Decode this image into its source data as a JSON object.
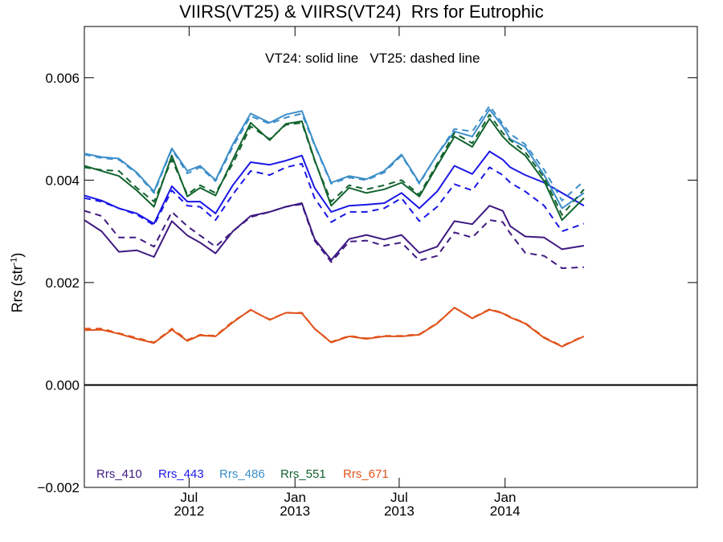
{
  "chart_data": {
    "type": "line",
    "title": "VIIRS(VT25) & VIIRS(VT24)  Rrs for Eutrophic",
    "annotation": "VT24: solid line   VT25: dashed line",
    "ylabel": "Rrs (str",
    "ylabel_exp": "-1",
    "ylabel_close": ")",
    "ylim": [
      -0.002,
      0.007
    ],
    "yticks": [
      -0.002,
      0.0,
      0.002,
      0.004,
      0.006
    ],
    "ytick_labels": [
      "−0.002",
      "0.000",
      "0.002",
      "0.004",
      "0.006"
    ],
    "xlim": [
      "2012-01-01",
      "2014-12-01"
    ],
    "xticks": [
      {
        "date": "2012-07-01",
        "month": "Jul",
        "year": "2012"
      },
      {
        "date": "2013-01-01",
        "month": "Jan",
        "year": "2013"
      },
      {
        "date": "2013-07-01",
        "month": "Jul",
        "year": "2013"
      },
      {
        "date": "2014-01-01",
        "month": "Jan",
        "year": "2014"
      }
    ],
    "zero_line": 0.0,
    "x": [
      "2012-01-01",
      "2012-01-31",
      "2012-03-01",
      "2012-04-01",
      "2012-05-01",
      "2012-06-01",
      "2012-06-28",
      "2012-07-20",
      "2012-08-16",
      "2012-09-15",
      "2012-10-16",
      "2012-11-18",
      "2012-12-16",
      "2013-01-13",
      "2013-02-04",
      "2013-03-05",
      "2013-04-05",
      "2013-05-05",
      "2013-06-05",
      "2013-07-05",
      "2013-08-05",
      "2013-09-05",
      "2013-10-05",
      "2013-11-05",
      "2013-12-05",
      "2013-12-28",
      "2014-01-10",
      "2014-02-05",
      "2014-03-10",
      "2014-04-10",
      "2014-05-18",
      "2014-06-12",
      "2014-07-15",
      "2014-08-15",
      "2014-09-15",
      "2014-10-15",
      "2014-11-15",
      "2014-12-01"
    ],
    "series": [
      {
        "name": "Rrs_410",
        "band": "410",
        "color": "#3f1a82",
        "style": "solid",
        "values": [
          0.00322,
          0.003,
          0.0026,
          0.00263,
          0.0025,
          0.0032,
          0.00292,
          0.00278,
          0.00257,
          0.003,
          0.0033,
          0.00338,
          0.00348,
          0.00355,
          0.00285,
          0.00244,
          0.00285,
          0.00293,
          0.00284,
          0.00293,
          0.00258,
          0.0027,
          0.0032,
          0.00314,
          0.0035,
          0.0034,
          0.0031,
          0.0029,
          0.00288,
          0.00265,
          0.00272,
          null,
          null,
          null,
          null,
          null,
          null,
          null
        ]
      },
      {
        "name": "Rrs_410",
        "band": "410",
        "color": "#3f1a82",
        "style": "dashed",
        "values": [
          0.0034,
          0.0033,
          0.00288,
          0.00288,
          0.0027,
          0.00338,
          0.0031,
          0.00292,
          0.0027,
          0.003,
          0.00328,
          0.00338,
          0.00348,
          0.00353,
          0.00282,
          0.0024,
          0.0028,
          0.00282,
          0.00272,
          0.00278,
          0.00243,
          0.00252,
          0.00298,
          0.00288,
          0.00322,
          0.00318,
          0.00296,
          0.00258,
          0.00252,
          0.00228,
          0.0023,
          null,
          null,
          null,
          null,
          null,
          null,
          null
        ]
      },
      {
        "name": "Rrs_443",
        "band": "443",
        "color": "#1a17e6",
        "style": "solid",
        "values": [
          0.0037,
          0.0036,
          0.00345,
          0.00335,
          0.00315,
          0.00388,
          0.00358,
          0.00358,
          0.00335,
          0.0039,
          0.00435,
          0.0043,
          0.00438,
          0.00448,
          0.00385,
          0.00338,
          0.0035,
          0.00352,
          0.00355,
          0.00375,
          0.00345,
          0.00378,
          0.00428,
          0.00412,
          0.00456,
          0.0044,
          0.00425,
          0.0041,
          0.00395,
          0.00375,
          0.0035,
          null,
          null,
          null,
          null,
          null,
          null,
          null
        ]
      },
      {
        "name": "Rrs_443",
        "band": "443",
        "color": "#1a17e6",
        "style": "dashed",
        "values": [
          0.00365,
          0.00358,
          0.00345,
          0.00333,
          0.00312,
          0.0038,
          0.0035,
          0.00348,
          0.00322,
          0.00372,
          0.00418,
          0.0041,
          0.00425,
          0.00432,
          0.00365,
          0.00318,
          0.00338,
          0.00338,
          0.00345,
          0.00365,
          0.0032,
          0.00348,
          0.00392,
          0.0038,
          0.00425,
          0.0041,
          0.00395,
          0.00378,
          0.0035,
          0.003,
          0.00315,
          null,
          null,
          null,
          null,
          null,
          null,
          null
        ]
      },
      {
        "name": "Rrs_486",
        "band": "486",
        "color": "#3b8ec9",
        "style": "solid",
        "values": [
          0.00452,
          0.00445,
          0.00442,
          0.00415,
          0.00378,
          0.00462,
          0.00418,
          0.00428,
          0.004,
          0.0047,
          0.0053,
          0.00512,
          0.00528,
          0.00535,
          0.0047,
          0.00395,
          0.00408,
          0.00402,
          0.00418,
          0.0045,
          0.00395,
          0.0045,
          0.00495,
          0.00485,
          0.00538,
          0.00505,
          0.0048,
          0.00465,
          0.0041,
          0.00345,
          0.00375,
          null,
          null,
          null,
          null,
          null,
          null,
          null
        ]
      },
      {
        "name": "Rrs_486",
        "band": "486",
        "color": "#3b8ec9",
        "style": "dashed",
        "values": [
          0.0045,
          0.00443,
          0.0044,
          0.00413,
          0.00375,
          0.0046,
          0.00413,
          0.00425,
          0.00398,
          0.00465,
          0.00525,
          0.0051,
          0.00522,
          0.0053,
          0.00468,
          0.00393,
          0.00405,
          0.004,
          0.00415,
          0.00448,
          0.00393,
          0.0045,
          0.005,
          0.00495,
          0.00545,
          0.0051,
          0.0049,
          0.0047,
          0.0042,
          0.0036,
          0.00398,
          null,
          null,
          null,
          null,
          null,
          null,
          null
        ]
      },
      {
        "name": "Rrs_551",
        "band": "551",
        "color": "#12632e",
        "style": "solid",
        "values": [
          0.00428,
          0.00418,
          0.00408,
          0.0038,
          0.00348,
          0.00448,
          0.00368,
          0.00385,
          0.0037,
          0.0044,
          0.00512,
          0.00478,
          0.0051,
          0.00515,
          0.0044,
          0.0035,
          0.00385,
          0.00375,
          0.00382,
          0.00395,
          0.00368,
          0.00428,
          0.00485,
          0.00465,
          0.0052,
          0.00485,
          0.0047,
          0.00448,
          0.00398,
          0.00322,
          0.00365,
          null,
          null,
          null,
          null,
          null,
          null,
          null
        ]
      },
      {
        "name": "Rrs_551",
        "band": "551",
        "color": "#12632e",
        "style": "dashed",
        "values": [
          0.00425,
          0.0042,
          0.00418,
          0.00385,
          0.00358,
          0.0044,
          0.00372,
          0.0039,
          0.00375,
          0.00432,
          0.00505,
          0.0048,
          0.00508,
          0.00512,
          0.00438,
          0.00358,
          0.0039,
          0.00382,
          0.0039,
          0.004,
          0.00372,
          0.00432,
          0.00492,
          0.00472,
          0.00528,
          0.00492,
          0.00478,
          0.00455,
          0.00405,
          0.00332,
          0.00382,
          null,
          null,
          null,
          null,
          null,
          null,
          null
        ]
      },
      {
        "name": "Rrs_671",
        "band": "671",
        "color": "#e0521a",
        "style": "solid",
        "values": [
          0.00107,
          0.00108,
          0.001,
          0.0009,
          0.00082,
          0.00108,
          0.00086,
          0.00097,
          0.00095,
          0.00122,
          0.00147,
          0.00127,
          0.00141,
          0.0014,
          0.0011,
          0.00083,
          0.00095,
          0.0009,
          0.00095,
          0.00095,
          0.00098,
          0.0012,
          0.00151,
          0.0013,
          0.00147,
          0.0014,
          0.00132,
          0.0012,
          0.00092,
          0.00075,
          0.00095,
          null,
          null,
          null,
          null,
          null,
          null,
          null
        ]
      },
      {
        "name": "Rrs_671",
        "band": "671",
        "color": "#e0521a",
        "style": "dashed",
        "values": [
          0.0011,
          0.0011,
          0.00101,
          0.00092,
          0.00083,
          0.0011,
          0.00088,
          0.00098,
          0.00096,
          0.00124,
          0.00146,
          0.00128,
          0.00141,
          0.00141,
          0.0011,
          0.00084,
          0.00096,
          0.00091,
          0.00096,
          0.00096,
          0.00099,
          0.00121,
          0.00151,
          0.00131,
          0.00148,
          0.00141,
          0.00133,
          0.00121,
          0.00093,
          0.00076,
          0.00096,
          null,
          null,
          null,
          null,
          null,
          null,
          null
        ]
      }
    ],
    "legend": [
      {
        "label": "Rrs_410",
        "color": "#3f1a82"
      },
      {
        "label": "Rrs_443",
        "color": "#1a17e6"
      },
      {
        "label": "Rrs_486",
        "color": "#3b8ec9"
      },
      {
        "label": "Rrs_551",
        "color": "#12632e"
      },
      {
        "label": "Rrs_671",
        "color": "#e0521a"
      }
    ],
    "legend_placement": "bottom-left",
    "grid": false
  }
}
